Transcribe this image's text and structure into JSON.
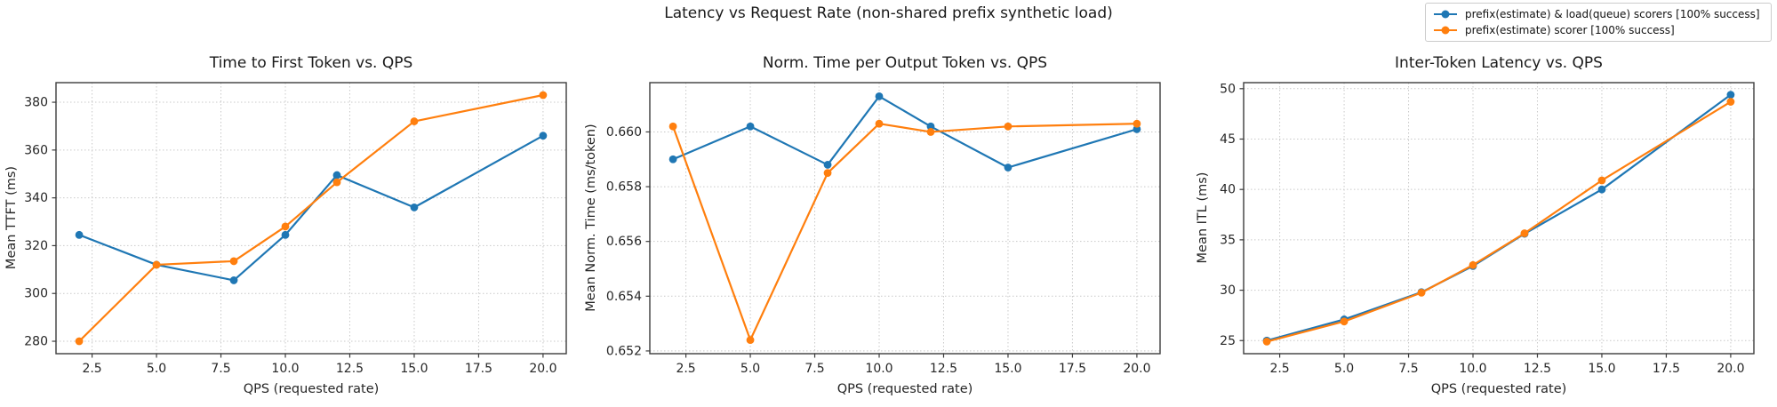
{
  "figure": {
    "title": "Latency vs Request Rate (non-shared prefix synthetic load)",
    "background": "#ffffff",
    "grid_color": "#c9c9c9",
    "frame_color": "#3c3c3c"
  },
  "legend": {
    "position": "figure-top-right",
    "items": [
      {
        "label": "prefix(estimate) & load(queue) scorers [100% success]",
        "color": "#1f77b4"
      },
      {
        "label": "prefix(estimate) scorer [100% success]",
        "color": "#ff7f0e"
      }
    ]
  },
  "chart_data": [
    {
      "type": "line",
      "title": "Time to First Token vs. QPS",
      "xlabel": "QPS (requested rate)",
      "ylabel": "Mean TTFT (ms)",
      "grid": true,
      "x": [
        2,
        5,
        8,
        10,
        12,
        15,
        20
      ],
      "series": [
        {
          "name": "prefix(estimate) & load(queue) scorers [100% success]",
          "color": "#1f77b4",
          "values": [
            324.5,
            312,
            305.5,
            324.5,
            349.5,
            336,
            366
          ]
        },
        {
          "name": "prefix(estimate) scorer [100% success]",
          "color": "#ff7f0e",
          "values": [
            280,
            312,
            313.5,
            328,
            346.5,
            372,
            383
          ]
        }
      ],
      "xlim": [
        1.1,
        20.9
      ],
      "ylim": [
        274.8,
        388.2
      ],
      "xticks": [
        "2.5",
        "5.0",
        "7.5",
        "10.0",
        "12.5",
        "15.0",
        "17.5",
        "20.0"
      ],
      "yticks": [
        "280",
        "300",
        "320",
        "340",
        "360",
        "380"
      ]
    },
    {
      "type": "line",
      "title": "Norm. Time per Output Token vs. QPS",
      "xlabel": "QPS (requested rate)",
      "ylabel": "Mean Norm. Time (ms/token)",
      "grid": true,
      "x": [
        2,
        5,
        8,
        10,
        12,
        15,
        20
      ],
      "series": [
        {
          "name": "prefix(estimate) & load(queue) scorers [100% success]",
          "color": "#1f77b4",
          "values": [
            0.659,
            0.6602,
            0.6588,
            0.6613,
            0.6602,
            0.6587,
            0.6601
          ]
        },
        {
          "name": "prefix(estimate) scorer [100% success]",
          "color": "#ff7f0e",
          "values": [
            0.6602,
            0.6524,
            0.6585,
            0.6603,
            0.66,
            0.6602,
            0.6603
          ]
        }
      ],
      "xlim": [
        1.1,
        20.9
      ],
      "ylim": [
        0.6519,
        0.6618
      ],
      "xticks": [
        "2.5",
        "5.0",
        "7.5",
        "10.0",
        "12.5",
        "15.0",
        "17.5",
        "20.0"
      ],
      "yticks": [
        "0.652",
        "0.654",
        "0.656",
        "0.658",
        "0.660"
      ]
    },
    {
      "type": "line",
      "title": "Inter-Token Latency vs. QPS",
      "xlabel": "QPS (requested rate)",
      "ylabel": "Mean ITL (ms)",
      "grid": true,
      "x": [
        2,
        5,
        8,
        10,
        12,
        15,
        20
      ],
      "series": [
        {
          "name": "prefix(estimate) & load(queue) scorers [100% success]",
          "color": "#1f77b4",
          "values": [
            25.0,
            27.1,
            29.8,
            32.4,
            35.6,
            40.0,
            49.4
          ]
        },
        {
          "name": "prefix(estimate) scorer [100% success]",
          "color": "#ff7f0e",
          "values": [
            24.9,
            26.9,
            29.75,
            32.5,
            35.65,
            40.9,
            48.7
          ]
        }
      ],
      "xlim": [
        1.1,
        20.9
      ],
      "ylim": [
        23.7,
        50.6
      ],
      "xticks": [
        "2.5",
        "5.0",
        "7.5",
        "10.0",
        "12.5",
        "15.0",
        "17.5",
        "20.0"
      ],
      "yticks": [
        "25",
        "30",
        "35",
        "40",
        "45",
        "50"
      ]
    }
  ]
}
